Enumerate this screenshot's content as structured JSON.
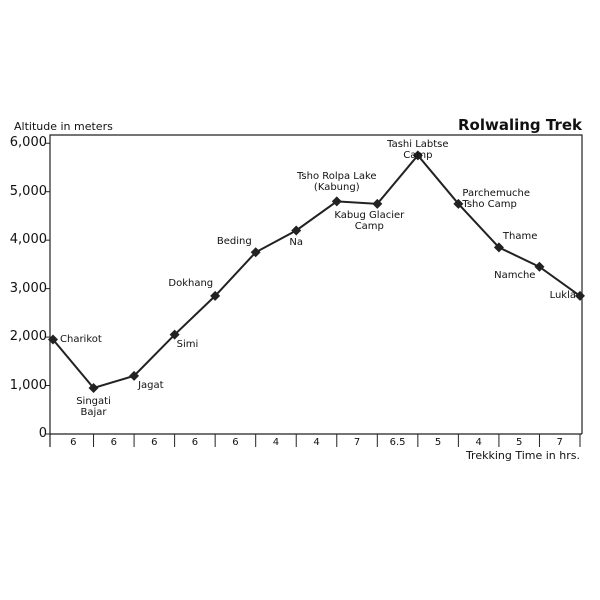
{
  "chart_data": {
    "type": "line",
    "title": "Rolwaling Trek",
    "y_label": "Altitude in meters",
    "x_label": "Trekking Time in hrs.",
    "categories": [
      "Charikot",
      "Singati\nBajar",
      "Jagat",
      "Simi",
      "Dokhang",
      "Beding",
      "Na",
      "Tsho Rolpa Lake\n(Kabung)",
      "Kabug Glacier\nCamp",
      "Tashi Labtse\nCamp",
      "Parchemuche\nTsho Camp",
      "Thame",
      "Namche",
      "Lukla"
    ],
    "values": [
      1950,
      950,
      1200,
      2050,
      2850,
      3750,
      4200,
      4800,
      4750,
      5750,
      4750,
      3850,
      3450,
      2850
    ],
    "intervals": [
      6,
      6,
      6,
      6,
      6,
      4,
      4,
      7,
      6.5,
      5,
      4,
      5,
      7
    ],
    "color": "#222222",
    "ylim": [
      0,
      6170
    ],
    "yticks": [
      0,
      {
        "value": 1000,
        "label": "1,000"
      },
      {
        "value": 2000,
        "label": "2,000"
      },
      {
        "value": 3000,
        "label": "3,000"
      },
      {
        "value": 4000,
        "label": "4,000"
      },
      {
        "value": 5000,
        "label": "5,000"
      },
      {
        "value": 6000,
        "label": "6,000"
      }
    ]
  }
}
